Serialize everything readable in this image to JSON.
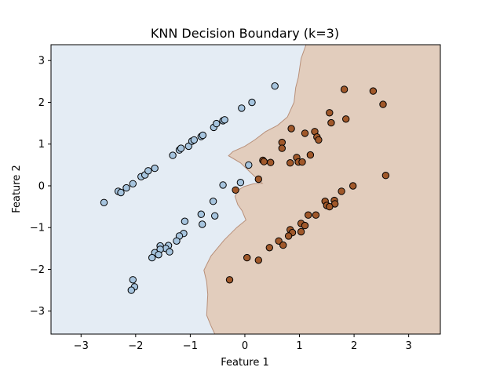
{
  "chart_data": {
    "type": "scatter",
    "title": "KNN Decision Boundary (k=3)",
    "xlabel": "Feature 1",
    "ylabel": "Feature 2",
    "xlim": [
      -3.55,
      3.58
    ],
    "ylim": [
      -3.55,
      3.38
    ],
    "xticks": [
      -3,
      -2,
      -1,
      0,
      1,
      2,
      3
    ],
    "yticks": [
      -3,
      -2,
      -1,
      0,
      1,
      2,
      3
    ],
    "xtick_labels": [
      "−3",
      "−2",
      "−1",
      "0",
      "1",
      "2",
      "3"
    ],
    "ytick_labels": [
      "−3",
      "−2",
      "−1",
      "0",
      "1",
      "2",
      "3"
    ],
    "grid": false,
    "region_colors": {
      "class_0": "#e4ecf4",
      "class_1": "#e2cdbd"
    },
    "boundary_color": "#b8907a",
    "decision_boundary": [
      [
        1.12,
        3.38
      ],
      [
        1.03,
        3.05
      ],
      [
        0.98,
        2.6
      ],
      [
        0.93,
        2.35
      ],
      [
        0.9,
        2.0
      ],
      [
        0.78,
        1.65
      ],
      [
        0.6,
        1.45
      ],
      [
        0.38,
        1.3
      ],
      [
        0.18,
        1.1
      ],
      [
        0.0,
        0.95
      ],
      [
        -0.22,
        0.82
      ],
      [
        -0.3,
        0.72
      ],
      [
        -0.08,
        0.55
      ],
      [
        0.12,
        0.3
      ],
      [
        0.28,
        0.1
      ],
      [
        0.32,
        0.06
      ],
      [
        0.16,
        0.05
      ],
      [
        -0.02,
        -0.02
      ],
      [
        -0.12,
        -0.1
      ],
      [
        -0.18,
        -0.25
      ],
      [
        -0.13,
        -0.45
      ],
      [
        -0.05,
        -0.6
      ],
      [
        0.02,
        -0.82
      ],
      [
        -0.15,
        -1.0
      ],
      [
        -0.38,
        -1.3
      ],
      [
        -0.62,
        -1.68
      ],
      [
        -0.75,
        -2.02
      ],
      [
        -0.7,
        -2.3
      ],
      [
        -0.68,
        -2.6
      ],
      [
        -0.7,
        -3.1
      ],
      [
        -0.62,
        -3.35
      ],
      [
        -0.55,
        -3.55
      ]
    ],
    "series": [
      {
        "class": 0,
        "color": "#a6c4de",
        "x": [
          -2.58,
          -2.32,
          -2.27,
          -2.17,
          -2.05,
          -1.9,
          -1.83,
          -1.77,
          -1.65,
          -1.32,
          -1.2,
          -1.17,
          -1.03,
          -0.97,
          -0.93,
          -0.8,
          -0.77,
          -0.57,
          -0.52,
          -0.4,
          -0.37,
          -0.06,
          0.13,
          0.55,
          0.07,
          -0.4,
          -0.08,
          -0.58,
          -0.55,
          -0.8,
          -0.78,
          -1.1,
          -1.12,
          -1.2,
          -1.25,
          -1.4,
          -1.45,
          -1.38,
          -1.55,
          -1.55,
          -1.65,
          -1.58,
          -1.7,
          -2.05,
          -2.02,
          -2.08
        ],
        "y": [
          -0.4,
          -0.13,
          -0.16,
          -0.05,
          0.05,
          0.22,
          0.26,
          0.36,
          0.42,
          0.73,
          0.86,
          0.9,
          0.95,
          1.07,
          1.1,
          1.18,
          1.21,
          1.4,
          1.49,
          1.56,
          1.58,
          1.86,
          2.0,
          2.39,
          0.5,
          0.02,
          0.08,
          -0.37,
          -0.72,
          -0.68,
          -0.92,
          -0.85,
          -1.14,
          -1.2,
          -1.32,
          -1.43,
          -1.5,
          -1.58,
          -1.44,
          -1.52,
          -1.6,
          -1.65,
          -1.72,
          -2.25,
          -2.42,
          -2.5
        ]
      },
      {
        "class": 1,
        "color": "#a0582a",
        "x": [
          1.82,
          2.35,
          2.53,
          1.55,
          1.85,
          1.58,
          0.85,
          1.28,
          1.1,
          1.32,
          1.35,
          0.68,
          0.68,
          1.2,
          0.33,
          0.35,
          0.47,
          0.95,
          0.98,
          0.83,
          1.05,
          0.25,
          -0.17,
          1.98,
          1.77,
          1.64,
          1.47,
          1.5,
          1.65,
          1.3,
          1.55,
          1.16,
          1.03,
          1.1,
          1.03,
          0.83,
          0.87,
          0.8,
          0.62,
          0.7,
          0.45,
          0.04,
          0.25,
          -0.28,
          2.58
        ],
        "y": [
          2.31,
          2.27,
          1.95,
          1.75,
          1.6,
          1.51,
          1.37,
          1.3,
          1.26,
          1.17,
          1.1,
          1.04,
          0.9,
          0.74,
          0.61,
          0.58,
          0.56,
          0.68,
          0.57,
          0.55,
          0.57,
          0.16,
          -0.1,
          0.0,
          -0.13,
          -0.35,
          -0.37,
          -0.47,
          -0.43,
          -0.7,
          -0.5,
          -0.7,
          -0.9,
          -0.95,
          -1.1,
          -1.05,
          -1.12,
          -1.2,
          -1.32,
          -1.42,
          -1.48,
          -1.72,
          -1.78,
          -2.25,
          0.25
        ]
      }
    ]
  }
}
